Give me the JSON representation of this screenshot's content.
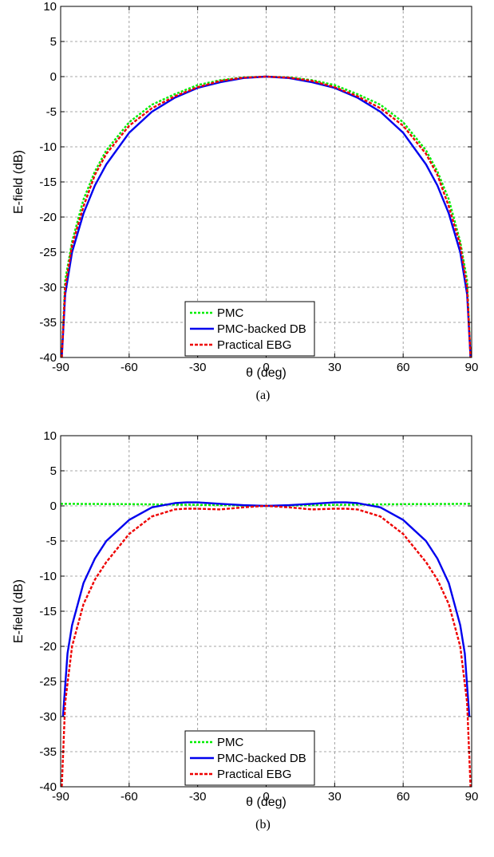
{
  "chart_data": [
    {
      "type": "line",
      "caption": "(a)",
      "xlabel": "θ (deg)",
      "ylabel": "E-field (dB)",
      "xlim": [
        -90,
        90
      ],
      "ylim": [
        -40,
        10
      ],
      "xticks": [
        "-90",
        "-60",
        "-30",
        "0",
        "30",
        "60",
        "90"
      ],
      "yticks": [
        "10",
        "5",
        "0",
        "-5",
        "-10",
        "-15",
        "-20",
        "-25",
        "-30",
        "-35",
        "-40"
      ],
      "grid": true,
      "legend_position": "bottom-center",
      "series": [
        {
          "name": "PMC",
          "color": "#00ee00",
          "style": "dotted",
          "x": [
            -89.5,
            -88,
            -85,
            -80,
            -75,
            -70,
            -60,
            -50,
            -40,
            -30,
            -20,
            -10,
            0,
            10,
            20,
            30,
            40,
            50,
            60,
            70,
            75,
            80,
            85,
            88,
            89.5
          ],
          "y": [
            -40,
            -29,
            -23.5,
            -17.5,
            -13.5,
            -10.5,
            -6.5,
            -4,
            -2.5,
            -1.2,
            -0.5,
            -0.1,
            0,
            -0.1,
            -0.5,
            -1.2,
            -2.5,
            -4,
            -6.5,
            -10.5,
            -13.5,
            -17.5,
            -23.5,
            -29,
            -40
          ]
        },
        {
          "name": "PMC-backed DB",
          "color": "#0000ee",
          "style": "solid",
          "x": [
            -89.5,
            -88,
            -85,
            -80,
            -75,
            -70,
            -60,
            -50,
            -40,
            -30,
            -20,
            -10,
            0,
            10,
            20,
            30,
            40,
            50,
            60,
            70,
            75,
            80,
            85,
            88,
            89.5
          ],
          "y": [
            -40,
            -31,
            -25,
            -19.5,
            -15.5,
            -12.5,
            -8,
            -5,
            -3,
            -1.6,
            -0.8,
            -0.2,
            0,
            -0.2,
            -0.8,
            -1.6,
            -3,
            -5,
            -8,
            -12.5,
            -15.5,
            -19.5,
            -25,
            -31,
            -40
          ]
        },
        {
          "name": "Practical EBG",
          "color": "#ee0000",
          "style": "dashed",
          "x": [
            -89.5,
            -88,
            -85,
            -80,
            -75,
            -70,
            -60,
            -50,
            -40,
            -30,
            -20,
            -10,
            0,
            10,
            20,
            30,
            40,
            50,
            60,
            70,
            75,
            80,
            85,
            88,
            89.5
          ],
          "y": [
            -40,
            -30,
            -24,
            -18.5,
            -14,
            -11,
            -7,
            -4.5,
            -2.8,
            -1.5,
            -0.6,
            -0.15,
            0,
            -0.15,
            -0.6,
            -1.5,
            -2.8,
            -4.5,
            -7,
            -11,
            -14,
            -18.5,
            -24,
            -30,
            -40
          ]
        }
      ]
    },
    {
      "type": "line",
      "caption": "(b)",
      "xlabel": "θ (deg)",
      "ylabel": "E-field (dB)",
      "xlim": [
        -90,
        90
      ],
      "ylim": [
        -40,
        10
      ],
      "xticks": [
        "-90",
        "-60",
        "-30",
        "0",
        "30",
        "60",
        "90"
      ],
      "yticks": [
        "10",
        "5",
        "0",
        "-5",
        "-10",
        "-15",
        "-20",
        "-25",
        "-30",
        "-35",
        "-40"
      ],
      "grid": true,
      "legend_position": "bottom-center",
      "series": [
        {
          "name": "PMC",
          "color": "#00ee00",
          "style": "dotted",
          "x": [
            -90,
            -60,
            -30,
            0,
            30,
            60,
            90
          ],
          "y": [
            0.3,
            0.25,
            0.15,
            0,
            0.15,
            0.25,
            0.3
          ]
        },
        {
          "name": "PMC-backed DB",
          "color": "#0000ee",
          "style": "solid",
          "x": [
            -89,
            -87,
            -85,
            -80,
            -75,
            -70,
            -60,
            -50,
            -40,
            -35,
            -30,
            -20,
            -10,
            0,
            10,
            20,
            30,
            35,
            40,
            50,
            60,
            70,
            75,
            80,
            85,
            87,
            89
          ],
          "y": [
            -30,
            -21,
            -17,
            -11,
            -7.5,
            -5,
            -2,
            -0.2,
            0.4,
            0.5,
            0.5,
            0.3,
            0.1,
            0,
            0.1,
            0.3,
            0.5,
            0.5,
            0.4,
            -0.2,
            -2,
            -5,
            -7.5,
            -11,
            -17,
            -21,
            -30
          ]
        },
        {
          "name": "Practical EBG",
          "color": "#ee0000",
          "style": "dashed",
          "x": [
            -89.5,
            -88,
            -85,
            -80,
            -75,
            -70,
            -60,
            -50,
            -40,
            -35,
            -30,
            -20,
            -10,
            0,
            10,
            20,
            30,
            35,
            40,
            50,
            60,
            70,
            75,
            80,
            85,
            88,
            89.5
          ],
          "y": [
            -40,
            -28,
            -20,
            -14,
            -10.5,
            -8,
            -4,
            -1.5,
            -0.5,
            -0.4,
            -0.4,
            -0.5,
            -0.2,
            0,
            -0.2,
            -0.5,
            -0.4,
            -0.4,
            -0.5,
            -1.5,
            -4,
            -8,
            -10.5,
            -14,
            -20,
            -28,
            -40
          ]
        }
      ]
    }
  ]
}
